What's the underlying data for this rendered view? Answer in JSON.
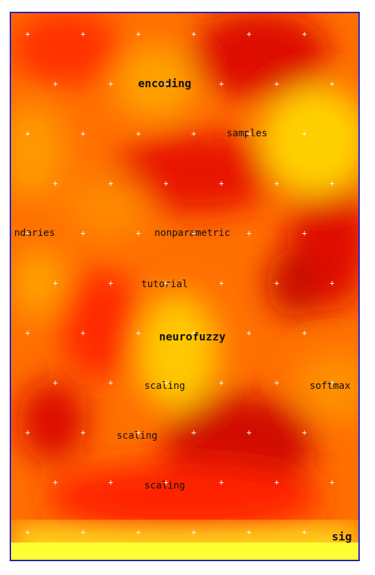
{
  "map": {
    "colors": {
      "border": "#1c1cc8",
      "low": "#cc0a00",
      "mid": "#ff7a00",
      "high": "#ffd700",
      "peak": "#ffff33",
      "grid_marker": "#ffffff"
    },
    "grid_marker_symbol": "+",
    "labels": [
      {
        "text": "encoding",
        "weight": "big"
      },
      {
        "text": "samples",
        "weight": "small"
      },
      {
        "text": "ndaries",
        "weight": "small"
      },
      {
        "text": "nonparametric",
        "weight": "small"
      },
      {
        "text": "tutorial",
        "weight": "small"
      },
      {
        "text": "neurofuzzy",
        "weight": "big"
      },
      {
        "text": "scaling",
        "weight": "small"
      },
      {
        "text": "softmax",
        "weight": "small"
      },
      {
        "text": "scaling",
        "weight": "small"
      },
      {
        "text": "scaling",
        "weight": "small"
      },
      {
        "text": "sig",
        "weight": "big"
      }
    ]
  }
}
